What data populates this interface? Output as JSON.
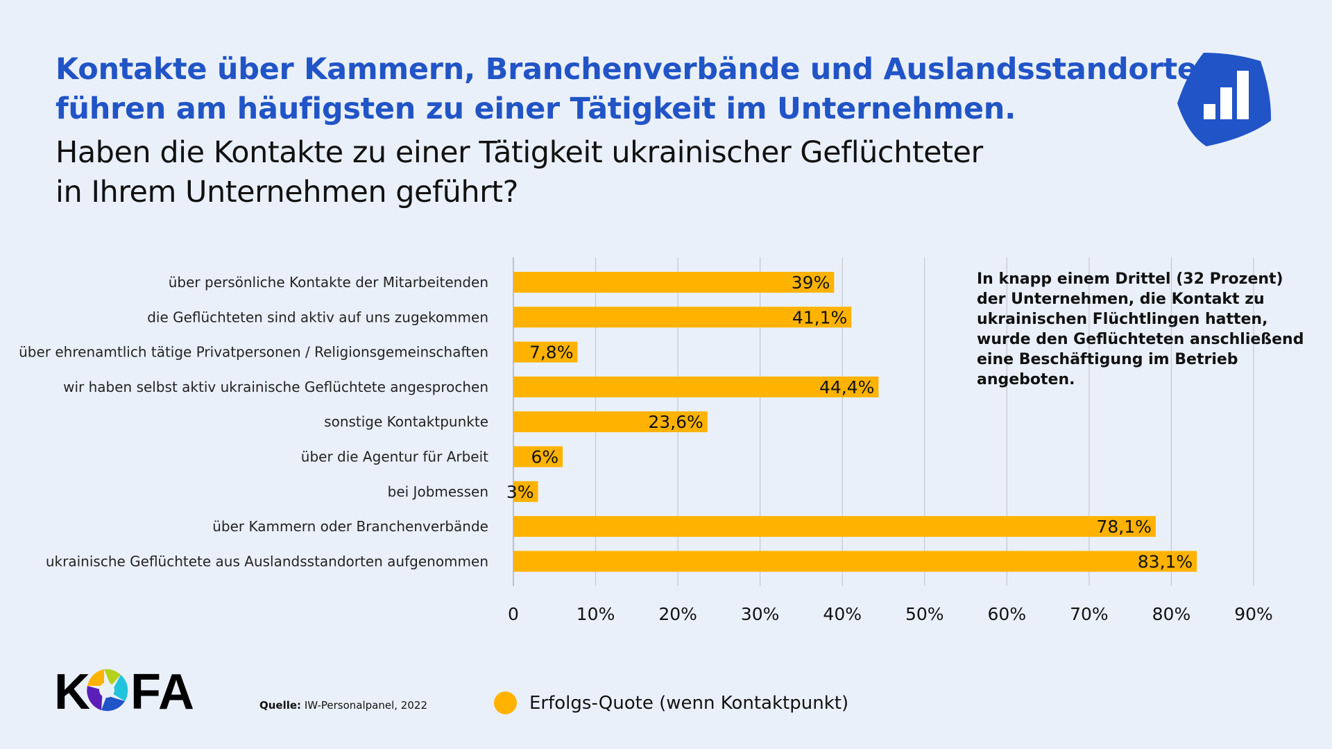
{
  "header": {
    "title_lines": [
      "Kontakte über Kammern, Branchenverbände und Auslandsstandorte",
      "führen am häufigsten zu einer Tätigkeit im Unternehmen."
    ],
    "subtitle_lines": [
      "Haben die Kontakte zu einer Tätigkeit ukrainischer Geflüchteter",
      "in Ihrem Unternehmen geführt?"
    ],
    "badge_icon": "bar-chart-icon",
    "badge_color": "#2154c6"
  },
  "annotation": {
    "lines": [
      "In knapp einem Drittel (32 Prozent)",
      "der Unternehmen, die Kontakt zu",
      "ukrainischen Flüchtlingen hatten,",
      "wurde den Geflüchteten anschließend",
      "eine Beschäftigung im Betrieb",
      "angeboten."
    ]
  },
  "footer": {
    "logo_text": "KOFA",
    "source_label": "Quelle:",
    "source_text": " IW-Personalpanel, 2022"
  },
  "chart_data": {
    "type": "bar",
    "orientation": "horizontal",
    "categories": [
      "über persönliche Kontakte der Mitarbeitenden",
      "die Geflüchteten sind aktiv auf uns zugekommen",
      "über ehrenamtlich tätige Privatpersonen / Religionsgemeinschaften",
      "wir haben selbst aktiv ukrainische Geflüchtete angesprochen",
      "sonstige Kontaktpunkte",
      "über die Agentur für Arbeit",
      "bei Jobmessen",
      "über Kammern oder Branchenverbände",
      "ukrainische Geflüchtete aus Auslandsstandorten aufgenommen"
    ],
    "series": [
      {
        "name": "Erfolgs-Quote (wenn Kontaktpunkt)",
        "values": [
          39,
          41.1,
          7.8,
          44.4,
          23.6,
          6,
          3,
          78.1,
          83.1
        ],
        "labels": [
          "39%",
          "41,1%",
          "7,8%",
          "44,4%",
          "23,6%",
          "6%",
          "3%",
          "78,1%",
          "83,1%"
        ],
        "color": "#ffb300"
      }
    ],
    "xlim": [
      0,
      90
    ],
    "xticks": [
      0,
      10,
      20,
      30,
      40,
      50,
      60,
      70,
      80,
      90
    ],
    "xtick_labels": [
      "0",
      "10%",
      "20%",
      "30%",
      "40%",
      "50%",
      "60%",
      "70%",
      "80%",
      "90%"
    ],
    "grid": "vertical",
    "legend": "bottom"
  }
}
